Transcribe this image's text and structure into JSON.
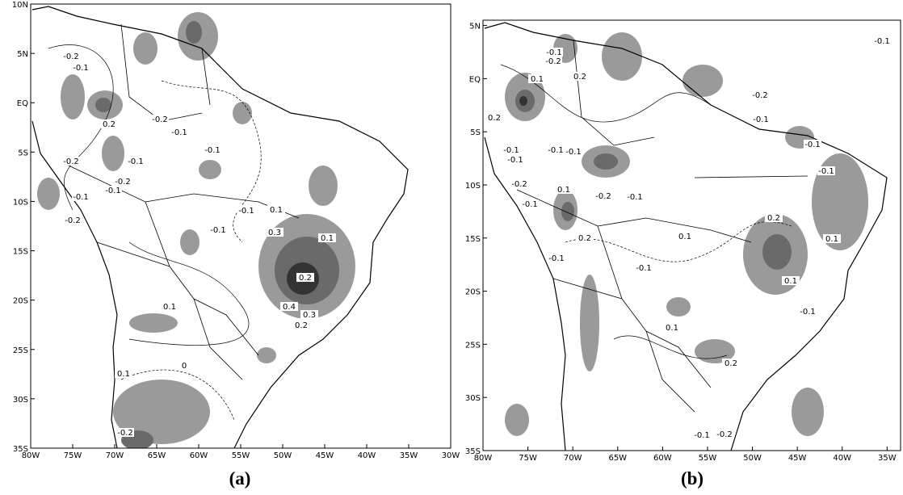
{
  "panels": [
    {
      "caption": "(a)",
      "xlim": [
        -80,
        -30
      ],
      "ylim": [
        -35,
        10
      ],
      "xticks": [
        {
          "value": -80,
          "label": "80W"
        },
        {
          "value": -75,
          "label": "75W"
        },
        {
          "value": -70,
          "label": "70W"
        },
        {
          "value": -65,
          "label": "65W"
        },
        {
          "value": -60,
          "label": "60W"
        },
        {
          "value": -55,
          "label": "55W"
        },
        {
          "value": -50,
          "label": "50W"
        },
        {
          "value": -45,
          "label": "45W"
        },
        {
          "value": -40,
          "label": "40W"
        },
        {
          "value": -35,
          "label": "35W"
        },
        {
          "value": -30,
          "label": "30W"
        }
      ],
      "yticks": [
        {
          "value": 10,
          "label": "10N"
        },
        {
          "value": 5,
          "label": "5N"
        },
        {
          "value": 0,
          "label": "EQ"
        },
        {
          "value": -5,
          "label": "5S"
        },
        {
          "value": -10,
          "label": "10S"
        },
        {
          "value": -15,
          "label": "15S"
        },
        {
          "value": -20,
          "label": "20S"
        },
        {
          "value": -25,
          "label": "25S"
        },
        {
          "value": -30,
          "label": "30S"
        },
        {
          "value": -35,
          "label": "35S"
        }
      ],
      "contour_labels": [
        -0.2,
        -0.1,
        0.2,
        -0.2,
        -0.1,
        -0.2,
        -0.1,
        -0.2,
        -0.1,
        -0.1,
        -0.2,
        -0.1,
        -0.1,
        0.1,
        0.3,
        0.1,
        0.2,
        0.4,
        0.3,
        0.2,
        0.1,
        0.1,
        -0.2,
        -0.1,
        0
      ]
    },
    {
      "caption": "(b)",
      "xlim": [
        -80,
        -33.5
      ],
      "ylim": [
        -35,
        5.5
      ],
      "xticks": [
        {
          "value": -80,
          "label": "80W"
        },
        {
          "value": -75,
          "label": "75W"
        },
        {
          "value": -70,
          "label": "70W"
        },
        {
          "value": -65,
          "label": "65W"
        },
        {
          "value": -60,
          "label": "60W"
        },
        {
          "value": -55,
          "label": "55W"
        },
        {
          "value": -50,
          "label": "50W"
        },
        {
          "value": -45,
          "label": "45W"
        },
        {
          "value": -40,
          "label": "40W"
        },
        {
          "value": -35,
          "label": "35W"
        }
      ],
      "yticks": [
        {
          "value": 5,
          "label": "5N"
        },
        {
          "value": 0,
          "label": "EQ"
        },
        {
          "value": -5,
          "label": "5S"
        },
        {
          "value": -10,
          "label": "10S"
        },
        {
          "value": -15,
          "label": "15S"
        },
        {
          "value": -20,
          "label": "20S"
        },
        {
          "value": -25,
          "label": "25S"
        },
        {
          "value": -30,
          "label": "30S"
        },
        {
          "value": -35,
          "label": "35S"
        }
      ],
      "contour_labels": [
        -0.1,
        -0.1,
        -0.2,
        0.1,
        0.2,
        -0.2,
        -0.1,
        0.2,
        -0.1,
        -0.1,
        -0.1,
        -0.1,
        -0.2,
        -0.1,
        0.1,
        -0.2,
        -0.1,
        0.2,
        -0.1,
        -0.1,
        0.1,
        0.2,
        0.1,
        0.1,
        -0.1,
        0.1,
        0.2,
        -0.1,
        -0.2,
        -0.1,
        -0.1
      ]
    }
  ]
}
